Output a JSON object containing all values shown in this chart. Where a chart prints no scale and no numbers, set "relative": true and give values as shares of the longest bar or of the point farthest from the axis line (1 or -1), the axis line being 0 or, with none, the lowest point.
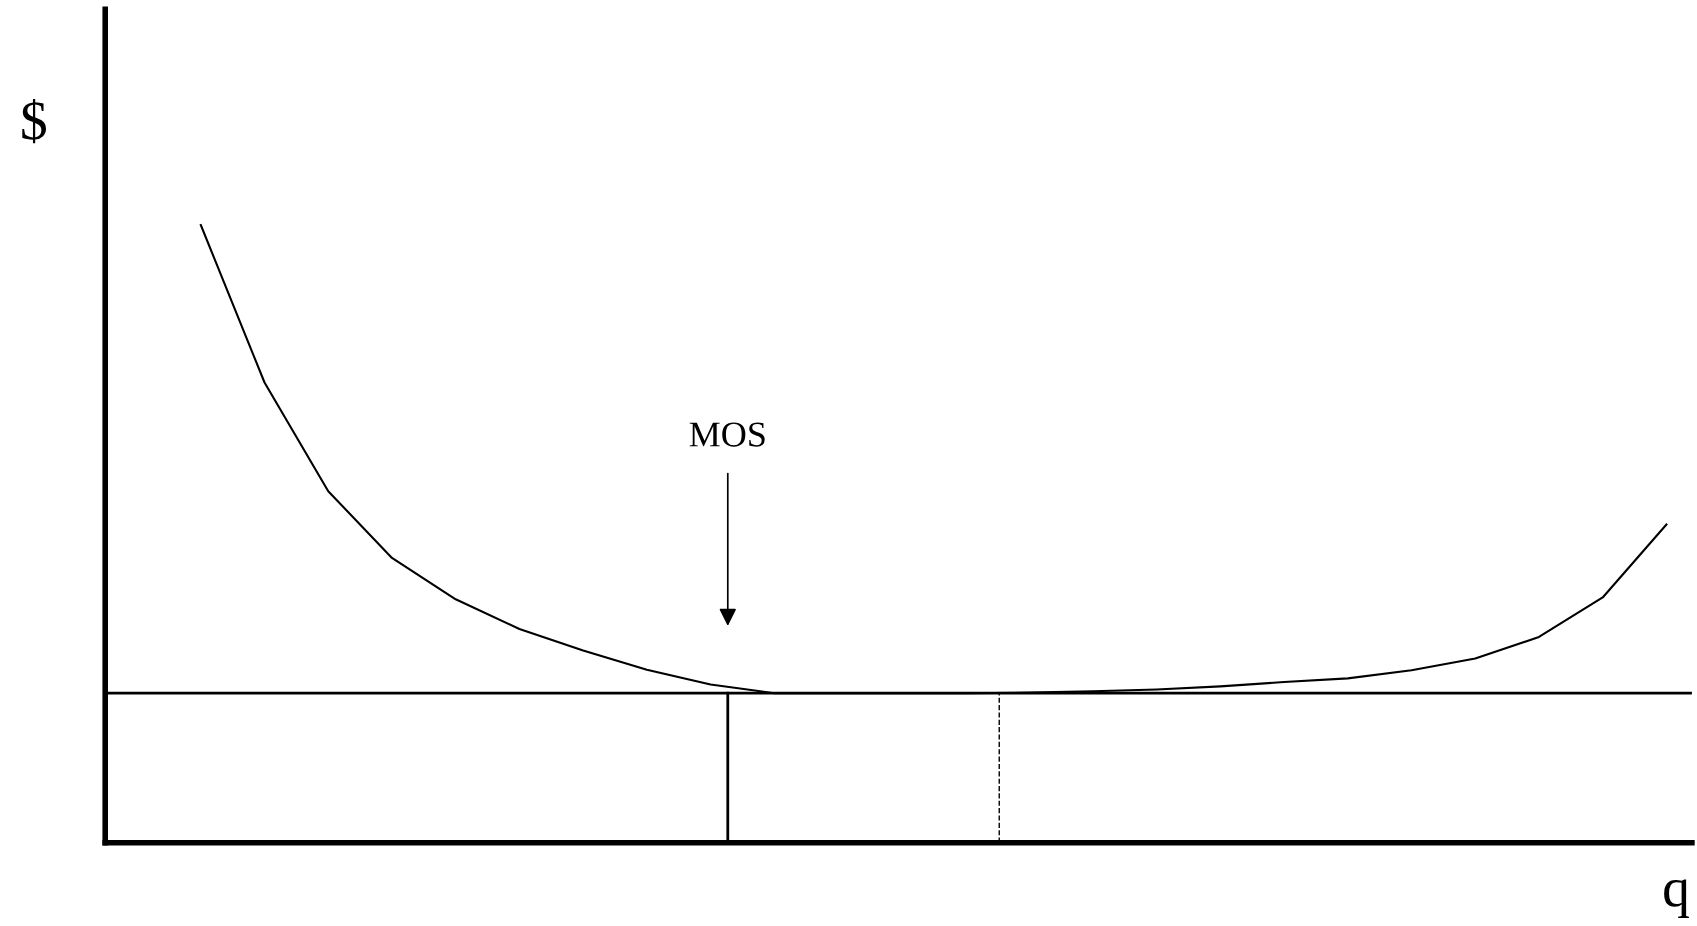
{
  "chart_data": {
    "type": "line",
    "relative": true,
    "xlabel": "q",
    "ylabel": "$",
    "categories": [
      null,
      null,
      null,
      null,
      null,
      null,
      null,
      null,
      null,
      null,
      null,
      null,
      null,
      null,
      null,
      null,
      null,
      null,
      null,
      null,
      null,
      null,
      null,
      null
    ],
    "series": [
      {
        "color": "#000000",
        "values": [
          1.0,
          0.745,
          0.569,
          0.461,
          0.394,
          0.346,
          0.311,
          0.28,
          0.256,
          0.242,
          0.242,
          0.242,
          0.242,
          0.243,
          0.245,
          0.248,
          0.253,
          0.26,
          0.266,
          0.279,
          0.298,
          0.333,
          0.397,
          0.515
        ]
      }
    ],
    "ref_lines": [
      {
        "axis": "y",
        "value": 0.242,
        "color": "#000000",
        "line_style": "solid"
      }
    ],
    "annotations": [
      "MOS"
    ],
    "grid": false,
    "legend": false,
    "marker": "none",
    "line_style": "solid"
  }
}
